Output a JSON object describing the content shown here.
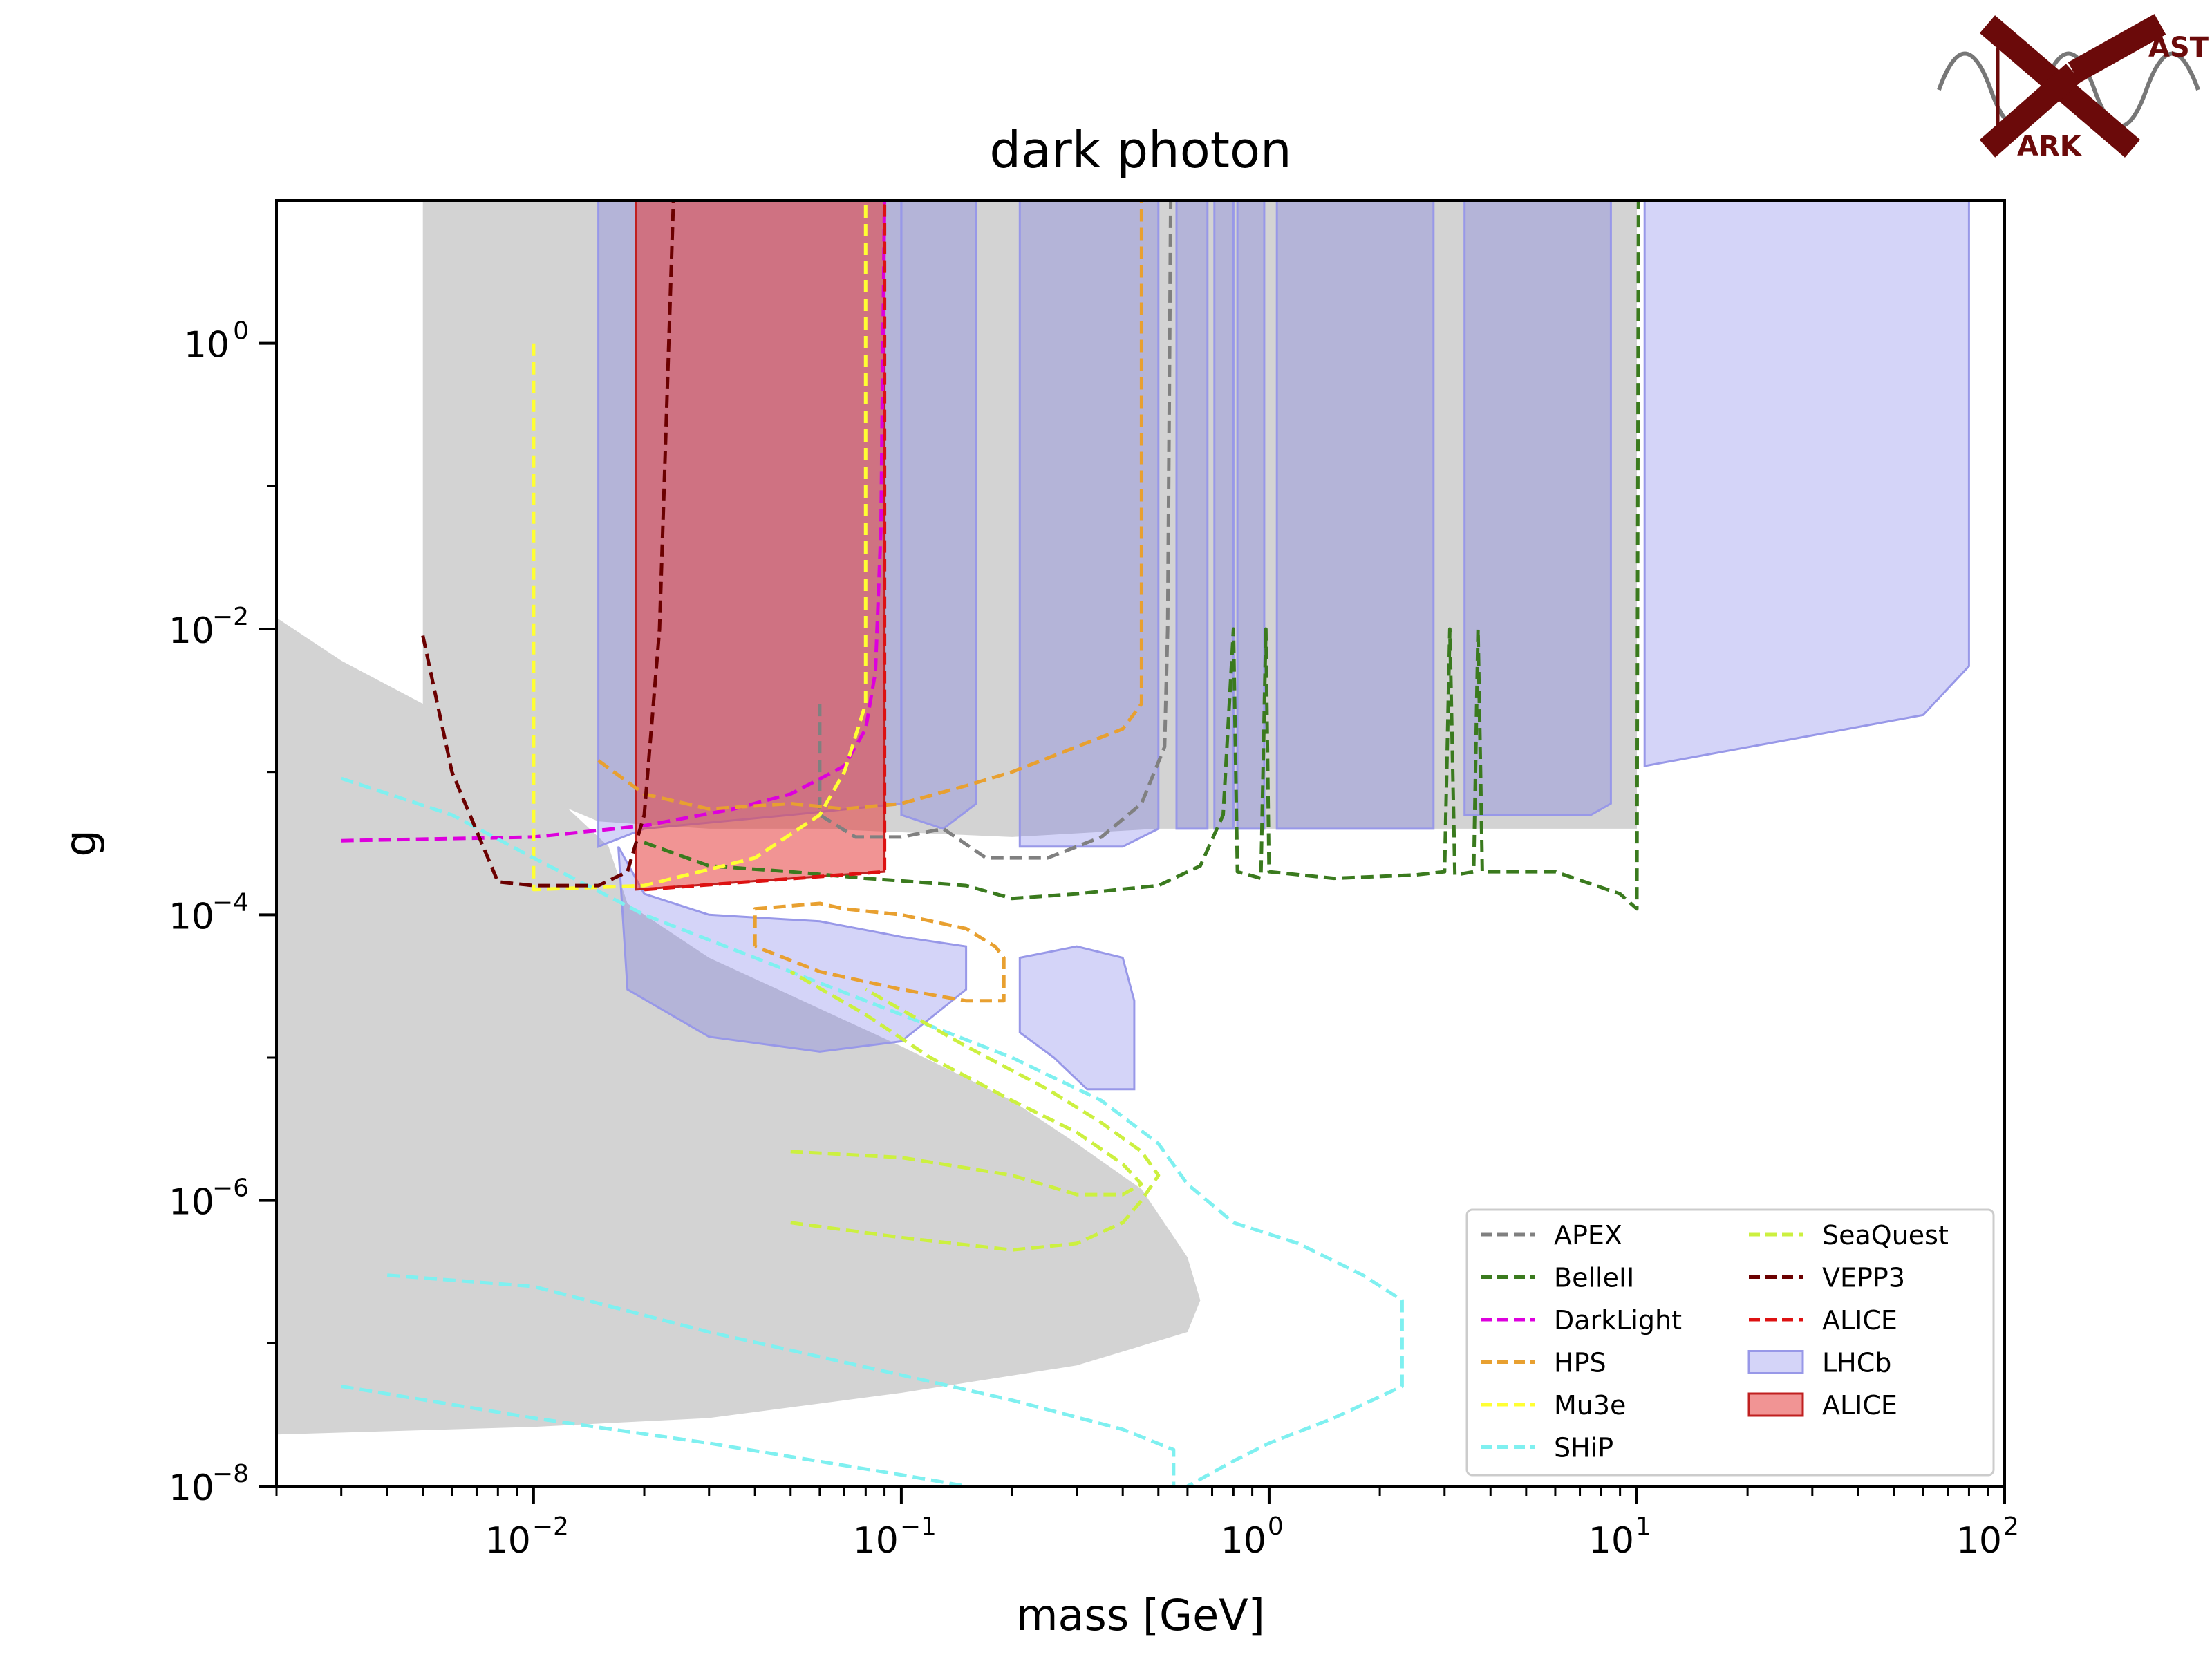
{
  "chart_data": {
    "type": "area",
    "title": "dark photon",
    "xlabel": "mass [GeV]",
    "ylabel": "g",
    "xscale": "log",
    "yscale": "log",
    "xlim": [
      0.002,
      100
    ],
    "ylim": [
      1e-08,
      10
    ],
    "x_ticks": [
      {
        "base": "10",
        "exp": "−2",
        "value": 0.01
      },
      {
        "base": "10",
        "exp": "−1",
        "value": 0.1
      },
      {
        "base": "10",
        "exp": "0",
        "value": 1
      },
      {
        "base": "10",
        "exp": "1",
        "value": 10
      },
      {
        "base": "10",
        "exp": "2",
        "value": 100
      }
    ],
    "y_ticks": [
      {
        "base": "10",
        "exp": "−8",
        "value": 1e-08
      },
      {
        "base": "10",
        "exp": "−6",
        "value": 1e-06
      },
      {
        "base": "10",
        "exp": "−4",
        "value": 0.0001
      },
      {
        "base": "10",
        "exp": "−2",
        "value": 0.01
      },
      {
        "base": "10",
        "exp": "0",
        "value": 1
      }
    ],
    "grid": false,
    "legend_position": "lower-right",
    "excluded_regions_color": "#d3d3d3",
    "excluded_regions": [
      {
        "name": "excluded-upper",
        "points": [
          [
            0.005,
            10
          ],
          [
            0.005,
            0.0009
          ],
          [
            0.007,
            0.0009
          ],
          [
            0.01,
            0.0007
          ],
          [
            0.015,
            0.00045
          ],
          [
            0.03,
            0.0004
          ],
          [
            0.06,
            0.0004
          ],
          [
            0.2,
            0.00035
          ],
          [
            0.5,
            0.0004
          ],
          [
            1,
            0.0004
          ],
          [
            3,
            0.0004
          ],
          [
            10,
            0.0004
          ],
          [
            10,
            10
          ]
        ]
      },
      {
        "name": "excluded-lower",
        "points": [
          [
            0.002,
            0.012
          ],
          [
            0.003,
            0.006
          ],
          [
            0.005,
            0.003
          ],
          [
            0.008,
            0.0013
          ],
          [
            0.012,
            0.0006
          ],
          [
            0.016,
            0.0003
          ],
          [
            0.018,
            0.00012
          ],
          [
            0.03,
            5e-05
          ],
          [
            0.06,
            2.2e-05
          ],
          [
            0.1,
            1.2e-05
          ],
          [
            0.2,
            5e-06
          ],
          [
            0.3,
            2.5e-06
          ],
          [
            0.45,
            1.2e-06
          ],
          [
            0.6,
            4e-07
          ],
          [
            0.65,
            2e-07
          ],
          [
            0.6,
            1.2e-07
          ],
          [
            0.3,
            7e-08
          ],
          [
            0.1,
            4.5e-08
          ],
          [
            0.03,
            3e-08
          ],
          [
            0.01,
            2.6e-08
          ],
          [
            0.002,
            2.3e-08
          ]
        ]
      }
    ],
    "series": [
      {
        "name": "APEX",
        "color": "#808080",
        "style": "dashed",
        "points": [
          [
            0.06,
            0.003
          ],
          [
            0.06,
            0.0005
          ],
          [
            0.075,
            0.00035
          ],
          [
            0.1,
            0.00035
          ],
          [
            0.13,
            0.0004
          ],
          [
            0.17,
            0.00025
          ],
          [
            0.25,
            0.00025
          ],
          [
            0.35,
            0.00035
          ],
          [
            0.45,
            0.0006
          ],
          [
            0.52,
            0.0015
          ],
          [
            0.53,
            0.01
          ],
          [
            0.54,
            10
          ]
        ]
      },
      {
        "name": "BelleII",
        "color": "#3a7a1e",
        "style": "dashed",
        "points": [
          [
            0.02,
            0.00032
          ],
          [
            0.03,
            0.00022
          ],
          [
            0.05,
            0.0002
          ],
          [
            0.08,
            0.00018
          ],
          [
            0.15,
            0.00016
          ],
          [
            0.2,
            0.00013
          ],
          [
            0.3,
            0.00014
          ],
          [
            0.5,
            0.00016
          ],
          [
            0.65,
            0.00022
          ],
          [
            0.75,
            0.0005
          ],
          [
            0.8,
            0.01
          ],
          [
            0.82,
            0.0002
          ],
          [
            0.95,
            0.00018
          ],
          [
            0.98,
            0.01
          ],
          [
            1.0,
            0.0002
          ],
          [
            1.5,
            0.00018
          ],
          [
            2.5,
            0.00019
          ],
          [
            3.0,
            0.0002
          ],
          [
            3.1,
            0.01
          ],
          [
            3.2,
            0.00019
          ],
          [
            3.6,
            0.0002
          ],
          [
            3.7,
            0.01
          ],
          [
            3.8,
            0.0002
          ],
          [
            6,
            0.0002
          ],
          [
            9,
            0.00014
          ],
          [
            10,
            0.00011
          ],
          [
            10.1,
            10
          ]
        ]
      },
      {
        "name": "DarkLight",
        "color": "#dd00dd",
        "style": "dashed",
        "points": [
          [
            0.003,
            0.00033
          ],
          [
            0.01,
            0.00035
          ],
          [
            0.02,
            0.00042
          ],
          [
            0.035,
            0.00055
          ],
          [
            0.05,
            0.0007
          ],
          [
            0.07,
            0.0011
          ],
          [
            0.08,
            0.002
          ],
          [
            0.085,
            0.005
          ],
          [
            0.088,
            0.05
          ],
          [
            0.09,
            10
          ]
        ]
      },
      {
        "name": "HPS",
        "color": "#e8a030",
        "style": "dashed",
        "points": [
          [
            0.015,
            0.0012
          ],
          [
            0.02,
            0.0007
          ],
          [
            0.03,
            0.00055
          ],
          [
            0.05,
            0.0006
          ],
          [
            0.07,
            0.00055
          ],
          [
            0.1,
            0.0006
          ],
          [
            0.15,
            0.0008
          ],
          [
            0.2,
            0.001
          ],
          [
            0.3,
            0.0015
          ],
          [
            0.4,
            0.002
          ],
          [
            0.45,
            0.003
          ],
          [
            0.45,
            10
          ]
        ]
      },
      {
        "name": "HPS-lower",
        "color": "#e8a030",
        "style": "dashed",
        "points": [
          [
            0.04,
            6e-05
          ],
          [
            0.04,
            0.00011
          ],
          [
            0.06,
            0.00012
          ],
          [
            0.07,
            0.00011
          ],
          [
            0.1,
            0.0001
          ],
          [
            0.15,
            8e-05
          ],
          [
            0.18,
            6e-05
          ],
          [
            0.19,
            5e-05
          ],
          [
            0.19,
            2.5e-05
          ],
          [
            0.15,
            2.5e-05
          ],
          [
            0.1,
            3e-05
          ],
          [
            0.06,
            4e-05
          ],
          [
            0.04,
            6e-05
          ]
        ]
      },
      {
        "name": "Mu3e",
        "color": "#ffff33",
        "style": "dashed",
        "points": [
          [
            0.01,
            1.0
          ],
          [
            0.01,
            0.00015
          ],
          [
            0.02,
            0.00016
          ],
          [
            0.04,
            0.00025
          ],
          [
            0.06,
            0.0005
          ],
          [
            0.07,
            0.001
          ],
          [
            0.08,
            0.003
          ],
          [
            0.08,
            10
          ]
        ]
      },
      {
        "name": "SHiP",
        "color": "#7ff0f0",
        "style": "dashed",
        "points": [
          [
            0.003,
            0.0009
          ],
          [
            0.006,
            0.0005
          ],
          [
            0.01,
            0.00025
          ],
          [
            0.02,
            0.0001
          ],
          [
            0.05,
            4e-05
          ],
          [
            0.1,
            2e-05
          ],
          [
            0.2,
            1e-05
          ],
          [
            0.35,
            5e-06
          ],
          [
            0.5,
            2.5e-06
          ],
          [
            0.6,
            1.3e-06
          ],
          [
            0.8,
            7e-07
          ],
          [
            1.2,
            5e-07
          ],
          [
            1.8,
            3e-07
          ],
          [
            2.3,
            2e-07
          ],
          [
            2.3,
            5e-08
          ],
          [
            1.5,
            3e-08
          ],
          [
            1.0,
            2e-08
          ],
          [
            0.8,
            1.5e-08
          ],
          [
            0.6,
            1e-08
          ]
        ]
      },
      {
        "name": "SHiP-b",
        "color": "#7ff0f0",
        "style": "dashed",
        "points": [
          [
            0.004,
            3e-07
          ],
          [
            0.01,
            2.5e-07
          ],
          [
            0.03,
            1.2e-07
          ],
          [
            0.1,
            6e-08
          ],
          [
            0.2,
            4e-08
          ],
          [
            0.4,
            2.5e-08
          ],
          [
            0.55,
            1.8e-08
          ],
          [
            0.55,
            1e-08
          ]
        ]
      },
      {
        "name": "SHiP-c",
        "color": "#7ff0f0",
        "style": "dashed",
        "points": [
          [
            0.003,
            5e-08
          ],
          [
            0.01,
            3e-08
          ],
          [
            0.03,
            2e-08
          ],
          [
            0.1,
            1.2e-08
          ],
          [
            0.15,
            1e-08
          ]
        ]
      },
      {
        "name": "SeaQuest",
        "color": "#ccf040",
        "style": "dashed",
        "points": [
          [
            0.05,
            2.2e-06
          ],
          [
            0.1,
            2e-06
          ],
          [
            0.2,
            1.5e-06
          ],
          [
            0.3,
            1.1e-06
          ],
          [
            0.4,
            1.1e-06
          ],
          [
            0.45,
            1.3e-06
          ],
          [
            0.4,
            1.8e-06
          ],
          [
            0.3,
            3e-06
          ],
          [
            0.2,
            5e-06
          ],
          [
            0.12,
            1e-05
          ],
          [
            0.08,
            2e-05
          ],
          [
            0.05,
            4e-05
          ]
        ]
      },
      {
        "name": "SeaQuest-b",
        "color": "#ccf040",
        "style": "dashed",
        "points": [
          [
            0.05,
            7e-07
          ],
          [
            0.1,
            5.5e-07
          ],
          [
            0.2,
            4.5e-07
          ],
          [
            0.3,
            5e-07
          ],
          [
            0.4,
            7e-07
          ],
          [
            0.45,
            1e-06
          ],
          [
            0.5,
            1.5e-06
          ],
          [
            0.45,
            2.2e-06
          ],
          [
            0.35,
            3.5e-06
          ],
          [
            0.25,
            6e-06
          ],
          [
            0.15,
            1.2e-05
          ],
          [
            0.08,
            3e-05
          ]
        ]
      },
      {
        "name": "VEPP3",
        "color": "#6b0000",
        "style": "dashed",
        "points": [
          [
            0.005,
            0.009
          ],
          [
            0.006,
            0.001
          ],
          [
            0.008,
            0.00017
          ],
          [
            0.01,
            0.00016
          ],
          [
            0.015,
            0.00016
          ],
          [
            0.018,
            0.0002
          ],
          [
            0.02,
            0.0005
          ],
          [
            0.022,
            0.01
          ],
          [
            0.024,
            10
          ]
        ]
      },
      {
        "name": "ALICE",
        "color": "#dd1111",
        "style": "dashed",
        "points": [
          [
            0.02,
            0.00015
          ],
          [
            0.09,
            0.0002
          ],
          [
            0.09,
            10
          ]
        ]
      }
    ],
    "bands": [
      {
        "name": "LHCb",
        "fill": "rgba(100,100,230,0.28)",
        "stroke": "#9898e8"
      },
      {
        "name": "ALICE",
        "fill": "rgba(230,60,60,0.55)",
        "stroke": "#c02020"
      }
    ],
    "lhcb_regions": [
      [
        [
          0.015,
          10
        ],
        [
          0.015,
          0.0003
        ],
        [
          0.02,
          0.0004
        ],
        [
          0.05,
          0.0005
        ],
        [
          0.1,
          0.0006
        ],
        [
          0.1,
          10
        ]
      ],
      [
        [
          0.1,
          10
        ],
        [
          0.1,
          0.0005
        ],
        [
          0.13,
          0.0004
        ],
        [
          0.16,
          0.0006
        ],
        [
          0.16,
          10
        ]
      ],
      [
        [
          0.21,
          10
        ],
        [
          0.21,
          0.0003
        ],
        [
          0.3,
          0.0003
        ],
        [
          0.4,
          0.0003
        ],
        [
          0.5,
          0.0004
        ],
        [
          0.5,
          10
        ]
      ],
      [
        [
          0.56,
          10
        ],
        [
          0.56,
          0.0004
        ],
        [
          0.68,
          0.0004
        ],
        [
          0.68,
          10
        ]
      ],
      [
        [
          0.71,
          10
        ],
        [
          0.71,
          0.0004
        ],
        [
          0.8,
          0.0004
        ],
        [
          0.8,
          10
        ]
      ],
      [
        [
          0.82,
          10
        ],
        [
          0.82,
          0.0004
        ],
        [
          0.97,
          0.0004
        ],
        [
          0.97,
          10
        ]
      ],
      [
        [
          1.05,
          10
        ],
        [
          1.05,
          0.0004
        ],
        [
          2.8,
          0.0004
        ],
        [
          2.8,
          10
        ]
      ],
      [
        [
          3.4,
          10
        ],
        [
          3.4,
          0.0005
        ],
        [
          7.5,
          0.0005
        ],
        [
          8.5,
          0.0006
        ],
        [
          8.5,
          10
        ]
      ],
      [
        [
          10.5,
          10
        ],
        [
          10.5,
          0.0011
        ],
        [
          30,
          0.0018
        ],
        [
          60,
          0.0025
        ],
        [
          80,
          0.0055
        ],
        [
          80,
          10
        ]
      ],
      [
        [
          0.017,
          0.0003
        ],
        [
          0.02,
          0.00014
        ],
        [
          0.03,
          0.0001
        ],
        [
          0.06,
          9e-05
        ],
        [
          0.1,
          7e-05
        ],
        [
          0.15,
          6e-05
        ],
        [
          0.15,
          3e-05
        ],
        [
          0.1,
          1.3e-05
        ],
        [
          0.06,
          1.1e-05
        ],
        [
          0.03,
          1.4e-05
        ],
        [
          0.018,
          3e-05
        ],
        [
          0.017,
          0.0003
        ]
      ],
      [
        [
          0.21,
          5e-05
        ],
        [
          0.3,
          6e-05
        ],
        [
          0.4,
          5e-05
        ],
        [
          0.43,
          2.5e-05
        ],
        [
          0.43,
          6e-06
        ],
        [
          0.32,
          6e-06
        ],
        [
          0.26,
          1e-05
        ],
        [
          0.21,
          1.5e-05
        ],
        [
          0.21,
          5e-05
        ]
      ]
    ],
    "alice_region": [
      [
        0.019,
        10
      ],
      [
        0.019,
        0.00015
      ],
      [
        0.09,
        0.0002
      ],
      [
        0.09,
        10
      ]
    ]
  },
  "legend": {
    "left": [
      "APEX",
      "BelleII",
      "DarkLight",
      "HPS",
      "Mu3e",
      "SHiP"
    ],
    "right": [
      "SeaQuest",
      "VEPP3",
      "ALICE",
      "LHCb",
      "ALICE"
    ]
  },
  "logo": {
    "label_top": "AST",
    "label_bottom": "ARK"
  }
}
